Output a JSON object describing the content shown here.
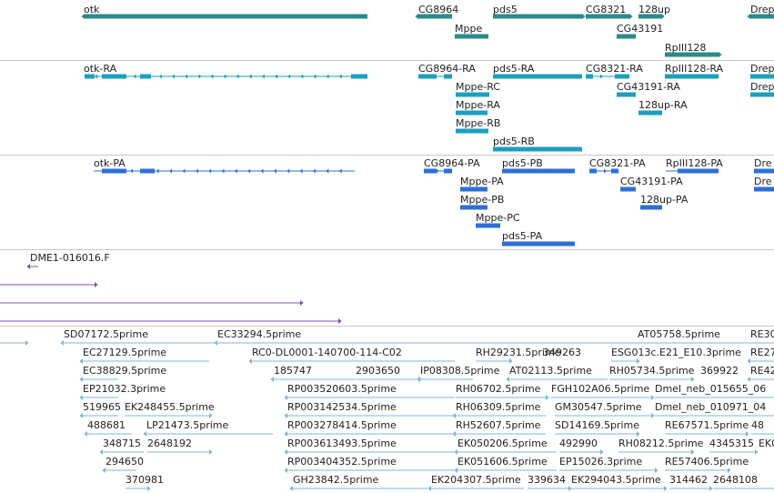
{
  "colors": {
    "gene": "#2b8a8a",
    "transcript": "#1aa0be",
    "protein": "#2e6fd6",
    "sequence": "#7a4fb8",
    "est": "#7fb6e0",
    "divider": "#c8c8c8",
    "text": "#222222"
  },
  "tracks": {
    "genes": [
      {
        "label": "otk"
      },
      {
        "label": "CG8964"
      },
      {
        "label": "pds5"
      },
      {
        "label": "CG8321"
      },
      {
        "label": "128up"
      },
      {
        "label": "Drep"
      },
      {
        "label": "Mppe"
      },
      {
        "label": "CG43191"
      },
      {
        "label": "RpIII128"
      }
    ],
    "transcripts": [
      {
        "label": "otk-RA"
      },
      {
        "label": "CG8964-RA"
      },
      {
        "label": "pds5-RA"
      },
      {
        "label": "CG8321-RA"
      },
      {
        "label": "RpIII128-RA"
      },
      {
        "label": "Drep"
      },
      {
        "label": "Mppe-RC"
      },
      {
        "label": "CG43191-RA"
      },
      {
        "label": "Drep"
      },
      {
        "label": "Mppe-RA"
      },
      {
        "label": "128up-RA"
      },
      {
        "label": "Mppe-RB"
      },
      {
        "label": "pds5-RB"
      }
    ],
    "proteins": [
      {
        "label": "otk-PA"
      },
      {
        "label": "CG8964-PA"
      },
      {
        "label": "pds5-PB"
      },
      {
        "label": "CG8321-PA"
      },
      {
        "label": "RpIII128-PA"
      },
      {
        "label": "Dre"
      },
      {
        "label": "Mppe-PA"
      },
      {
        "label": "CG43191-PA"
      },
      {
        "label": "Dre"
      },
      {
        "label": "Mppe-PB"
      },
      {
        "label": "128up-PA"
      },
      {
        "label": "Mppe-PC"
      },
      {
        "label": "pds5-PA"
      }
    ],
    "sequences": [
      {
        "label": "DME1-016016.F"
      }
    ],
    "ests": [
      {
        "label": "SD07172.5prime"
      },
      {
        "label": "EC33294.5prime"
      },
      {
        "label": "AT05758.5prime"
      },
      {
        "label": "RE30"
      },
      {
        "label": "EC27129.5prime"
      },
      {
        "label": "RC0-DL0001-140700-114-C02"
      },
      {
        "label": "RH29231.5prime"
      },
      {
        "label": "349263"
      },
      {
        "label": "ESG013c.E21_E10.3prime"
      },
      {
        "label": "RE27"
      },
      {
        "label": "EC38829.5prime"
      },
      {
        "label": "185747"
      },
      {
        "label": "2903650"
      },
      {
        "label": "IP08308.5prime"
      },
      {
        "label": "AT02113.5prime"
      },
      {
        "label": "RH05734.5prime"
      },
      {
        "label": "369922"
      },
      {
        "label": "RE42"
      },
      {
        "label": "EP21032.3prime"
      },
      {
        "label": "RP003520603.5prime"
      },
      {
        "label": "RH06702.5prime"
      },
      {
        "label": "FGH102A06.5prime"
      },
      {
        "label": "Dmel_neb_015655_06"
      },
      {
        "label": "519965"
      },
      {
        "label": "EK248455.5prime"
      },
      {
        "label": "RP003142534.5prime"
      },
      {
        "label": "RH06309.5prime"
      },
      {
        "label": "GM30547.5prime"
      },
      {
        "label": "Dmel_neb_010971_04"
      },
      {
        "label": "488681"
      },
      {
        "label": "LP21473.5prime"
      },
      {
        "label": "RP003278414.5prime"
      },
      {
        "label": "RH52607.5prime"
      },
      {
        "label": "SD14169.5prime"
      },
      {
        "label": "RE67571.5prime"
      },
      {
        "label": "48"
      },
      {
        "label": "348715"
      },
      {
        "label": "2648192"
      },
      {
        "label": "RP003613493.5prime"
      },
      {
        "label": "EK050206.5prime"
      },
      {
        "label": "492990"
      },
      {
        "label": "RH08212.5prime"
      },
      {
        "label": "4345315"
      },
      {
        "label": "EK0"
      },
      {
        "label": "294650"
      },
      {
        "label": "RP003404352.5prime"
      },
      {
        "label": "EK051606.5prime"
      },
      {
        "label": "EP15026.3prime"
      },
      {
        "label": "RE57406.5prime"
      },
      {
        "label": "370981"
      },
      {
        "label": "GH23842.5prime"
      },
      {
        "label": "EK204307.5prime"
      },
      {
        "label": "339634"
      },
      {
        "label": "EK294043.5prime"
      },
      {
        "label": "314462"
      },
      {
        "label": "2648108"
      }
    ]
  }
}
